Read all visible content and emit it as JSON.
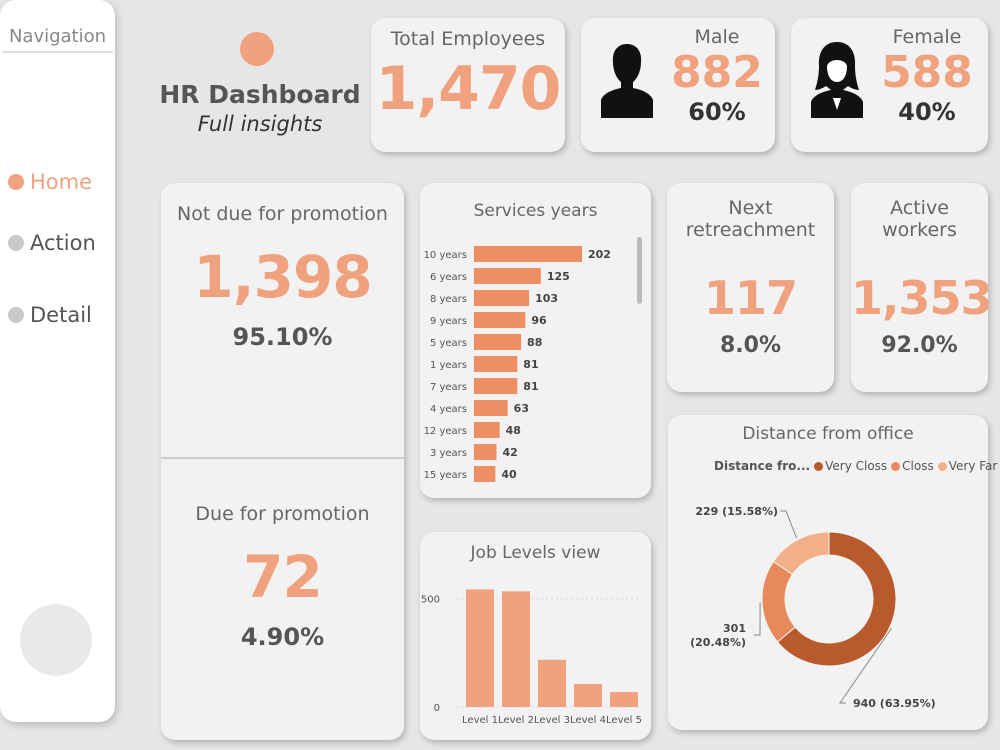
{
  "nav": {
    "title": "Navigation",
    "items": [
      {
        "label": "Home",
        "active": true
      },
      {
        "label": "Action",
        "active": false
      },
      {
        "label": "Detail",
        "active": false
      }
    ]
  },
  "header": {
    "title": "HR Dashboard",
    "subtitle": "Full insights"
  },
  "kpi": {
    "total": {
      "label": "Total Employees",
      "value": "1,470"
    },
    "male": {
      "label": "Male",
      "value": "882",
      "pct": "60%",
      "icon": "male-user-icon"
    },
    "female": {
      "label": "Female",
      "value": "588",
      "pct": "40%",
      "icon": "female-user-icon"
    },
    "not_due": {
      "label": "Not due for promotion",
      "value": "1,398",
      "pct": "95.10%"
    },
    "due": {
      "label": "Due for promotion",
      "value": "72",
      "pct": "4.90%"
    },
    "next": {
      "label": "Next retreachment",
      "value": "117",
      "pct": "8.0%"
    },
    "active": {
      "label": "Active workers",
      "value": "1,353",
      "pct": "92.0%"
    }
  },
  "colors": {
    "accent": "#f0a27e",
    "bar": "#ee8f63",
    "job_bar": "#f0a27e",
    "very_close": "#b85a2c",
    "close": "#e8895c",
    "very_far": "#f2b088"
  },
  "chart_data": [
    {
      "type": "bar",
      "orientation": "horizontal",
      "title": "Services years",
      "categories": [
        "10 years",
        "6 years",
        "8 years",
        "9 years",
        "5 years",
        "1 years",
        "7 years",
        "4 years",
        "12 years",
        "3 years",
        "15 years"
      ],
      "values": [
        202,
        125,
        103,
        96,
        88,
        81,
        81,
        63,
        48,
        42,
        40
      ]
    },
    {
      "type": "bar",
      "title": "Job Levels view",
      "categories": [
        "Level 1",
        "Level 2",
        "Level 3",
        "Level 4",
        "Level 5"
      ],
      "values": [
        543,
        534,
        218,
        106,
        69
      ],
      "ylim": [
        0,
        600
      ],
      "yticks": [
        0,
        500
      ]
    },
    {
      "type": "pie",
      "title": "Distance from office",
      "legend_title": "Distance fro...",
      "categories": [
        "Very Closs",
        "Closs",
        "Very Far"
      ],
      "values": [
        940,
        301,
        229
      ],
      "labels": [
        "940 (63.95%)",
        "301\n(20.48%)",
        "229 (15.58%)"
      ]
    }
  ]
}
